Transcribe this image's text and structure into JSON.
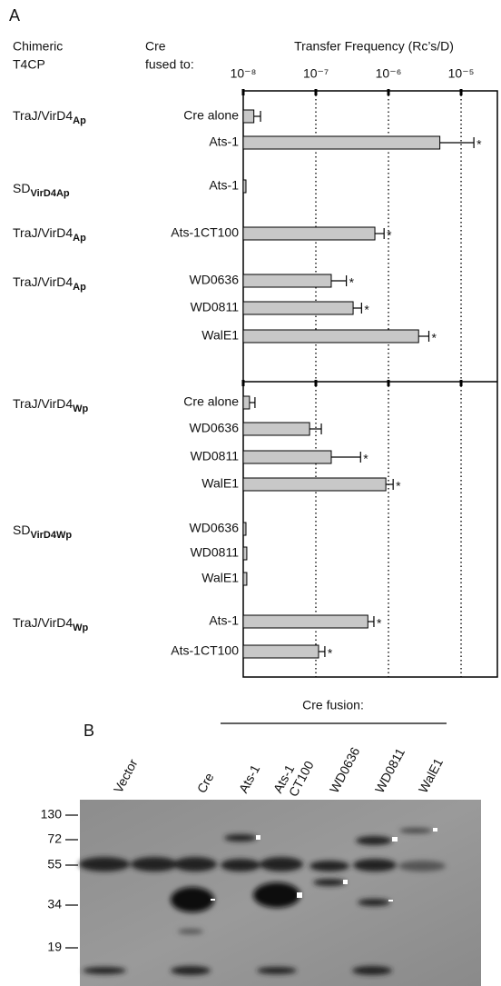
{
  "panel_labels": [
    "A",
    "B"
  ],
  "column_headers": {
    "t4cp": [
      "Chimeric",
      "T4CP"
    ],
    "cre": [
      "Cre",
      "fused to:"
    ]
  },
  "chart_data": [
    {
      "type": "bar",
      "orientation": "horizontal",
      "xscale": "log",
      "title": "Transfer Frequency (Rc’s/D)",
      "xlim": [
        1e-08,
        3.16e-05
      ],
      "xticks": [
        {
          "value": 1e-08,
          "label": "10⁻⁸"
        },
        {
          "value": 1e-07,
          "label": "10⁻⁷"
        },
        {
          "value": 1e-06,
          "label": "10⁻⁶"
        },
        {
          "value": 1e-05,
          "label": "10⁻⁵"
        }
      ],
      "grid": true,
      "color": "#c8c8c8",
      "groups": [
        {
          "label": "TraJ/VirD4",
          "subscript": "Ap",
          "categories": [
            "Cre alone",
            "Ats-1"
          ],
          "values": [
            1.4e-08,
            5.1e-06
          ],
          "errors": [
            3.3e-09,
            9.9e-06
          ],
          "significance": [
            null,
            "*"
          ]
        },
        {
          "label": "SD",
          "subscript": "VirD4Ap",
          "categories": [
            "Ats-1"
          ],
          "values": [
            1.09e-08
          ],
          "errors": [
            null
          ],
          "significance": [
            null
          ]
        },
        {
          "label": "TraJ/VirD4",
          "subscript": "Ap",
          "categories": [
            "Ats-1CT100"
          ],
          "values": [
            6.5e-07
          ],
          "errors": [
            2.2e-07
          ],
          "significance": [
            "*"
          ]
        },
        {
          "label": "TraJ/VirD4",
          "subscript": "Ap",
          "categories": [
            "WD0636",
            "WD0811",
            "WalE1"
          ],
          "values": [
            1.63e-07,
            3.26e-07,
            2.6e-06
          ],
          "errors": [
            1e-07,
            1e-07,
            1e-06
          ],
          "significance": [
            "*",
            "*",
            "*"
          ]
        }
      ]
    },
    {
      "type": "bar",
      "orientation": "horizontal",
      "xscale": "log",
      "xlim": [
        1e-08,
        3.16e-05
      ],
      "grid": true,
      "color": "#c8c8c8",
      "groups": [
        {
          "label": "TraJ/VirD4",
          "subscript": "Wp",
          "categories": [
            "Cre alone",
            "WD0636",
            "WD0811",
            "WalE1"
          ],
          "values": [
            1.22e-08,
            8.2e-08,
            1.63e-07,
            9.2e-07
          ],
          "errors": [
            2.3e-09,
            3.7e-08,
            2.5e-07,
            2.4e-07
          ],
          "significance": [
            null,
            null,
            "*",
            "*"
          ]
        },
        {
          "label": "SD",
          "subscript": "VirD4Wp",
          "categories": [
            "WD0636",
            "WD0811",
            "WalE1"
          ],
          "values": [
            1.09e-08,
            1.12e-08,
            1.12e-08
          ],
          "errors": [
            null,
            null,
            null
          ],
          "significance": [
            null,
            null,
            null
          ]
        },
        {
          "label": "TraJ/VirD4",
          "subscript": "Wp",
          "categories": [
            "Ats-1",
            "Ats-1CT100"
          ],
          "values": [
            5.2e-07,
            1.09e-07
          ],
          "errors": [
            1.1e-07,
            2.4e-08
          ],
          "significance": [
            "*",
            "*"
          ]
        }
      ]
    }
  ],
  "blot": {
    "title": "Cre fusion:",
    "lanes": [
      [
        "Vector"
      ],
      [
        "Cre"
      ],
      [
        "Ats-1"
      ],
      [
        "Ats-1",
        "CT100"
      ],
      [
        "WD0636"
      ],
      [
        "WD0811"
      ],
      [
        "WalE1"
      ]
    ],
    "markers": [
      130,
      72,
      55,
      34,
      19
    ]
  }
}
